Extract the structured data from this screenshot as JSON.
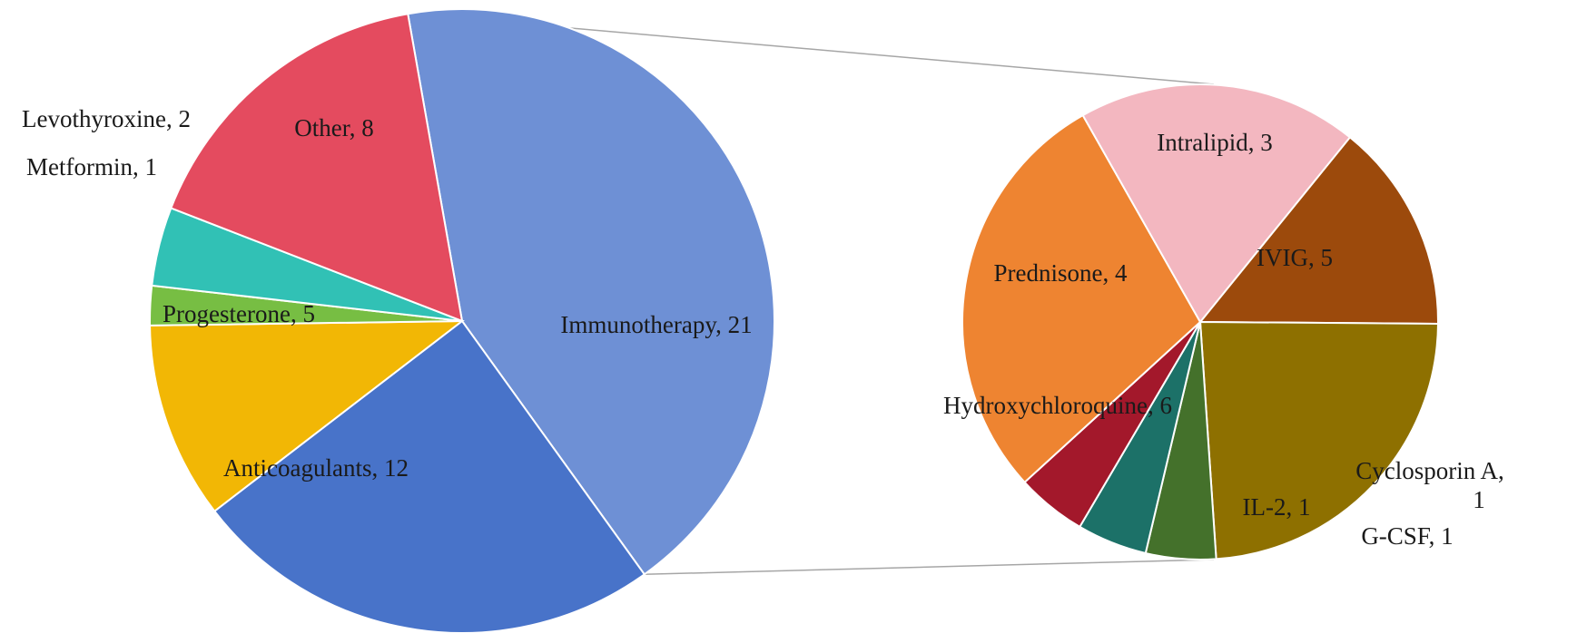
{
  "chart_data": [
    {
      "type": "pie",
      "title": "",
      "slices": [
        {
          "label": "Immunotherapy",
          "value": 21,
          "color": "#6E90D5",
          "display": "Immunotherapy, 21"
        },
        {
          "label": "Anticoagulants",
          "value": 12,
          "color": "#4873C9",
          "display": "Anticoagulants, 12"
        },
        {
          "label": "Progesterone",
          "value": 5,
          "color": "#F2B705",
          "display": "Progesterone, 5"
        },
        {
          "label": "Metformin",
          "value": 1,
          "color": "#77BE43",
          "display": "Metformin, 1"
        },
        {
          "label": "Levothyroxine",
          "value": 2,
          "color": "#31C1B5",
          "display": "Levothyroxine, 2"
        },
        {
          "label": "Other",
          "value": 8,
          "color": "#E44B5F",
          "display": "Other, 8"
        }
      ]
    },
    {
      "type": "pie",
      "title": "",
      "breakdown_of": "Immunotherapy",
      "slices": [
        {
          "label": "Intralipid",
          "value": 3,
          "color": "#9C4A0C",
          "display": "Intralipid, 3"
        },
        {
          "label": "IVIG",
          "value": 5,
          "color": "#8E7000",
          "display": "IVIG, 5"
        },
        {
          "label": "Cyclosporin A",
          "value": 1,
          "color": "#44712B",
          "display": "Cyclosporin A,",
          "display2": "1"
        },
        {
          "label": "G-CSF",
          "value": 1,
          "color": "#1C7168",
          "display": "G-CSF, 1"
        },
        {
          "label": "IL-2",
          "value": 1,
          "color": "#A3182B",
          "display": "IL-2, 1"
        },
        {
          "label": "Hydroxychloroquine",
          "value": 6,
          "color": "#EE8431",
          "display": "Hydroxychloroquine, 6"
        },
        {
          "label": "Prednisone",
          "value": 4,
          "color": "#F3B7C0",
          "display": "Prednisone, 4"
        }
      ]
    }
  ]
}
